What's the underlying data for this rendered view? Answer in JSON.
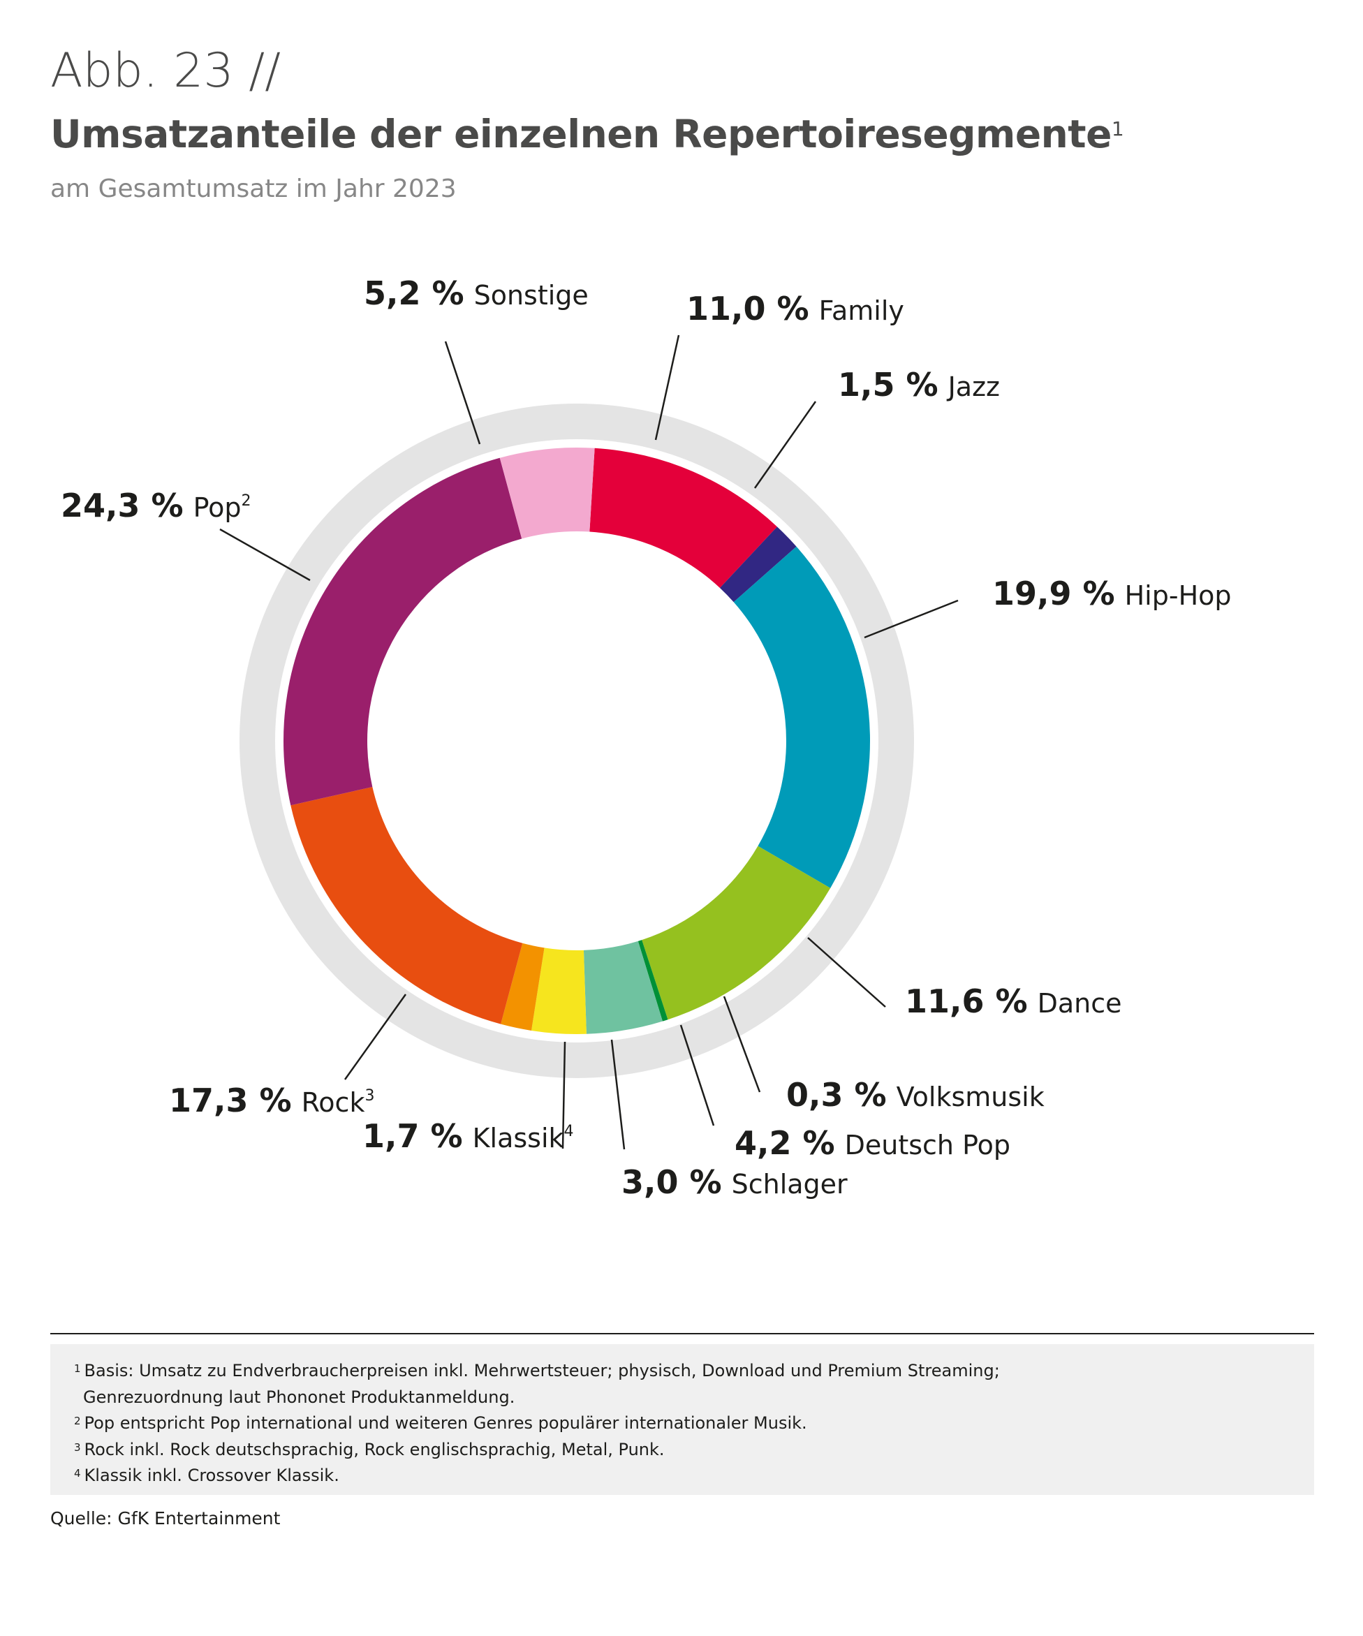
{
  "header": {
    "figure_label": "Abb. 23 //",
    "title": "Umsatzanteile der einzelnen Repertoiresegmente",
    "title_footnote": "1",
    "subtitle": "am Gesamtumsatz im Jahr 2023"
  },
  "chart_data": {
    "type": "pie",
    "variant": "donut",
    "unit": "%",
    "segments": [
      {
        "name": "Family",
        "value": 11.0,
        "label_value": "11,0 %",
        "sup": "",
        "color": "#e4003a"
      },
      {
        "name": "Jazz",
        "value": 1.5,
        "label_value": "1,5 %",
        "sup": "",
        "color": "#312783"
      },
      {
        "name": "Hip-Hop",
        "value": 19.9,
        "label_value": "19,9 %",
        "sup": "",
        "color": "#009bb8"
      },
      {
        "name": "Dance",
        "value": 11.6,
        "label_value": "11,6 %",
        "sup": "",
        "color": "#95c11f"
      },
      {
        "name": "Volksmusik",
        "value": 0.3,
        "label_value": "0,3 %",
        "sup": "",
        "color": "#009036"
      },
      {
        "name": "Deutsch Pop",
        "value": 4.2,
        "label_value": "4,2 %",
        "sup": "",
        "color": "#6fc2a0"
      },
      {
        "name": "Schlager",
        "value": 3.0,
        "label_value": "3,0 %",
        "sup": "",
        "color": "#f6e51e"
      },
      {
        "name": "Klassik",
        "value": 1.7,
        "label_value": "1,7 %",
        "sup": "4",
        "color": "#f39200"
      },
      {
        "name": "Rock",
        "value": 17.3,
        "label_value": "17,3 %",
        "sup": "3",
        "color": "#e84e10"
      },
      {
        "name": "Pop",
        "value": 24.3,
        "label_value": "24,3 %",
        "sup": "2",
        "color": "#9a1f6b"
      },
      {
        "name": "Sonstige",
        "value": 5.2,
        "label_value": "5,2 %",
        "sup": "",
        "color": "#f3a9cf"
      }
    ],
    "ring_color": "#e4e4e4"
  },
  "footnotes": {
    "n1_mark": "1",
    "n1_line1": "Basis: Umsatz zu Endverbraucherpreisen inkl. Mehrwertsteuer; physisch, Download und Premium Streaming;",
    "n1_line2": "Genrezuordnung laut Phononet Produktanmeldung.",
    "n2_mark": "2",
    "n2": "Pop entspricht Pop international und weiteren Genres populärer internationaler Musik.",
    "n3_mark": "3",
    "n3": "Rock inkl. Rock deutschsprachig, Rock englischsprachig, Metal, Punk.",
    "n4_mark": "4",
    "n4": "Klassik inkl. Crossover Klassik."
  },
  "source": "Quelle: GfK Entertainment"
}
